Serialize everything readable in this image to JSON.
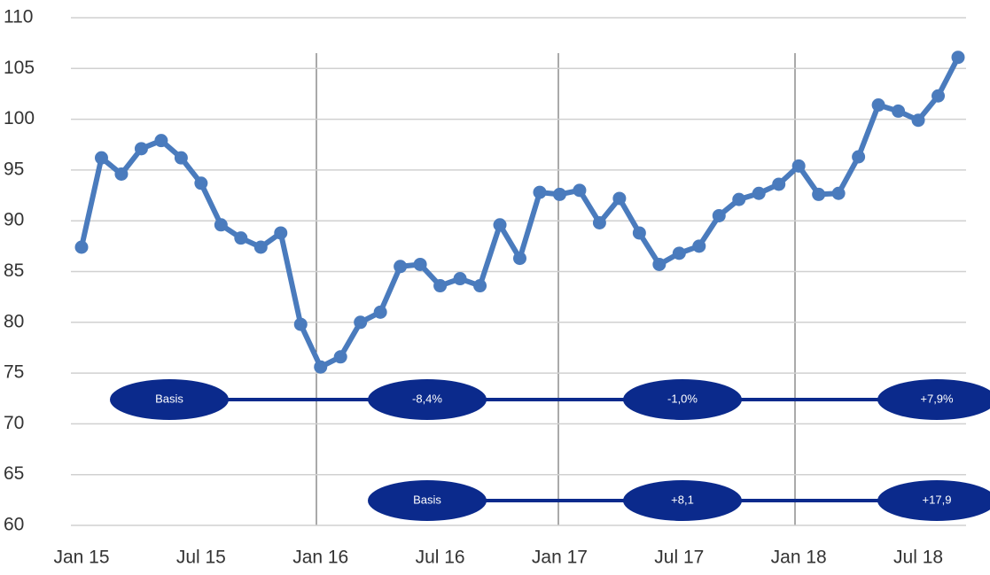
{
  "chart_data": {
    "type": "line",
    "categories": [
      "Jan 15",
      null,
      null,
      null,
      null,
      null,
      "Jul 15",
      null,
      null,
      null,
      null,
      null,
      "Jan 16",
      null,
      null,
      null,
      null,
      null,
      "Jul 16",
      null,
      null,
      null,
      null,
      null,
      "Jan 17",
      null,
      null,
      null,
      null,
      null,
      "Jul 17",
      null,
      null,
      null,
      null,
      null,
      "Jan 18",
      null,
      null,
      null,
      null,
      null,
      "Jul 18",
      null,
      null
    ],
    "series": [
      {
        "color": "#4a7bbd",
        "values": [
          87.4,
          96.2,
          94.6,
          97.1,
          97.9,
          96.2,
          93.7,
          89.6,
          88.3,
          87.4,
          88.8,
          79.8,
          75.6,
          76.6,
          80.0,
          81.0,
          85.5,
          85.7,
          83.6,
          84.3,
          83.6,
          89.6,
          86.3,
          92.8,
          92.6,
          93.0,
          89.8,
          92.2,
          88.8,
          85.7,
          86.8,
          87.5,
          90.5,
          92.1,
          92.7,
          93.6,
          95.4,
          92.6,
          92.7,
          96.3,
          101.4,
          100.8,
          99.9,
          102.3,
          106.1
        ]
      }
    ],
    "ylim": [
      60,
      110
    ],
    "yticks": [
      60,
      65,
      70,
      75,
      80,
      85,
      90,
      95,
      100,
      105,
      110
    ],
    "grid": true,
    "annotations": [
      [
        "Basis",
        "-8,4%",
        "-1,0%",
        "+7,9%"
      ],
      [
        "Basis",
        "+8,1",
        "+17,9"
      ]
    ]
  }
}
